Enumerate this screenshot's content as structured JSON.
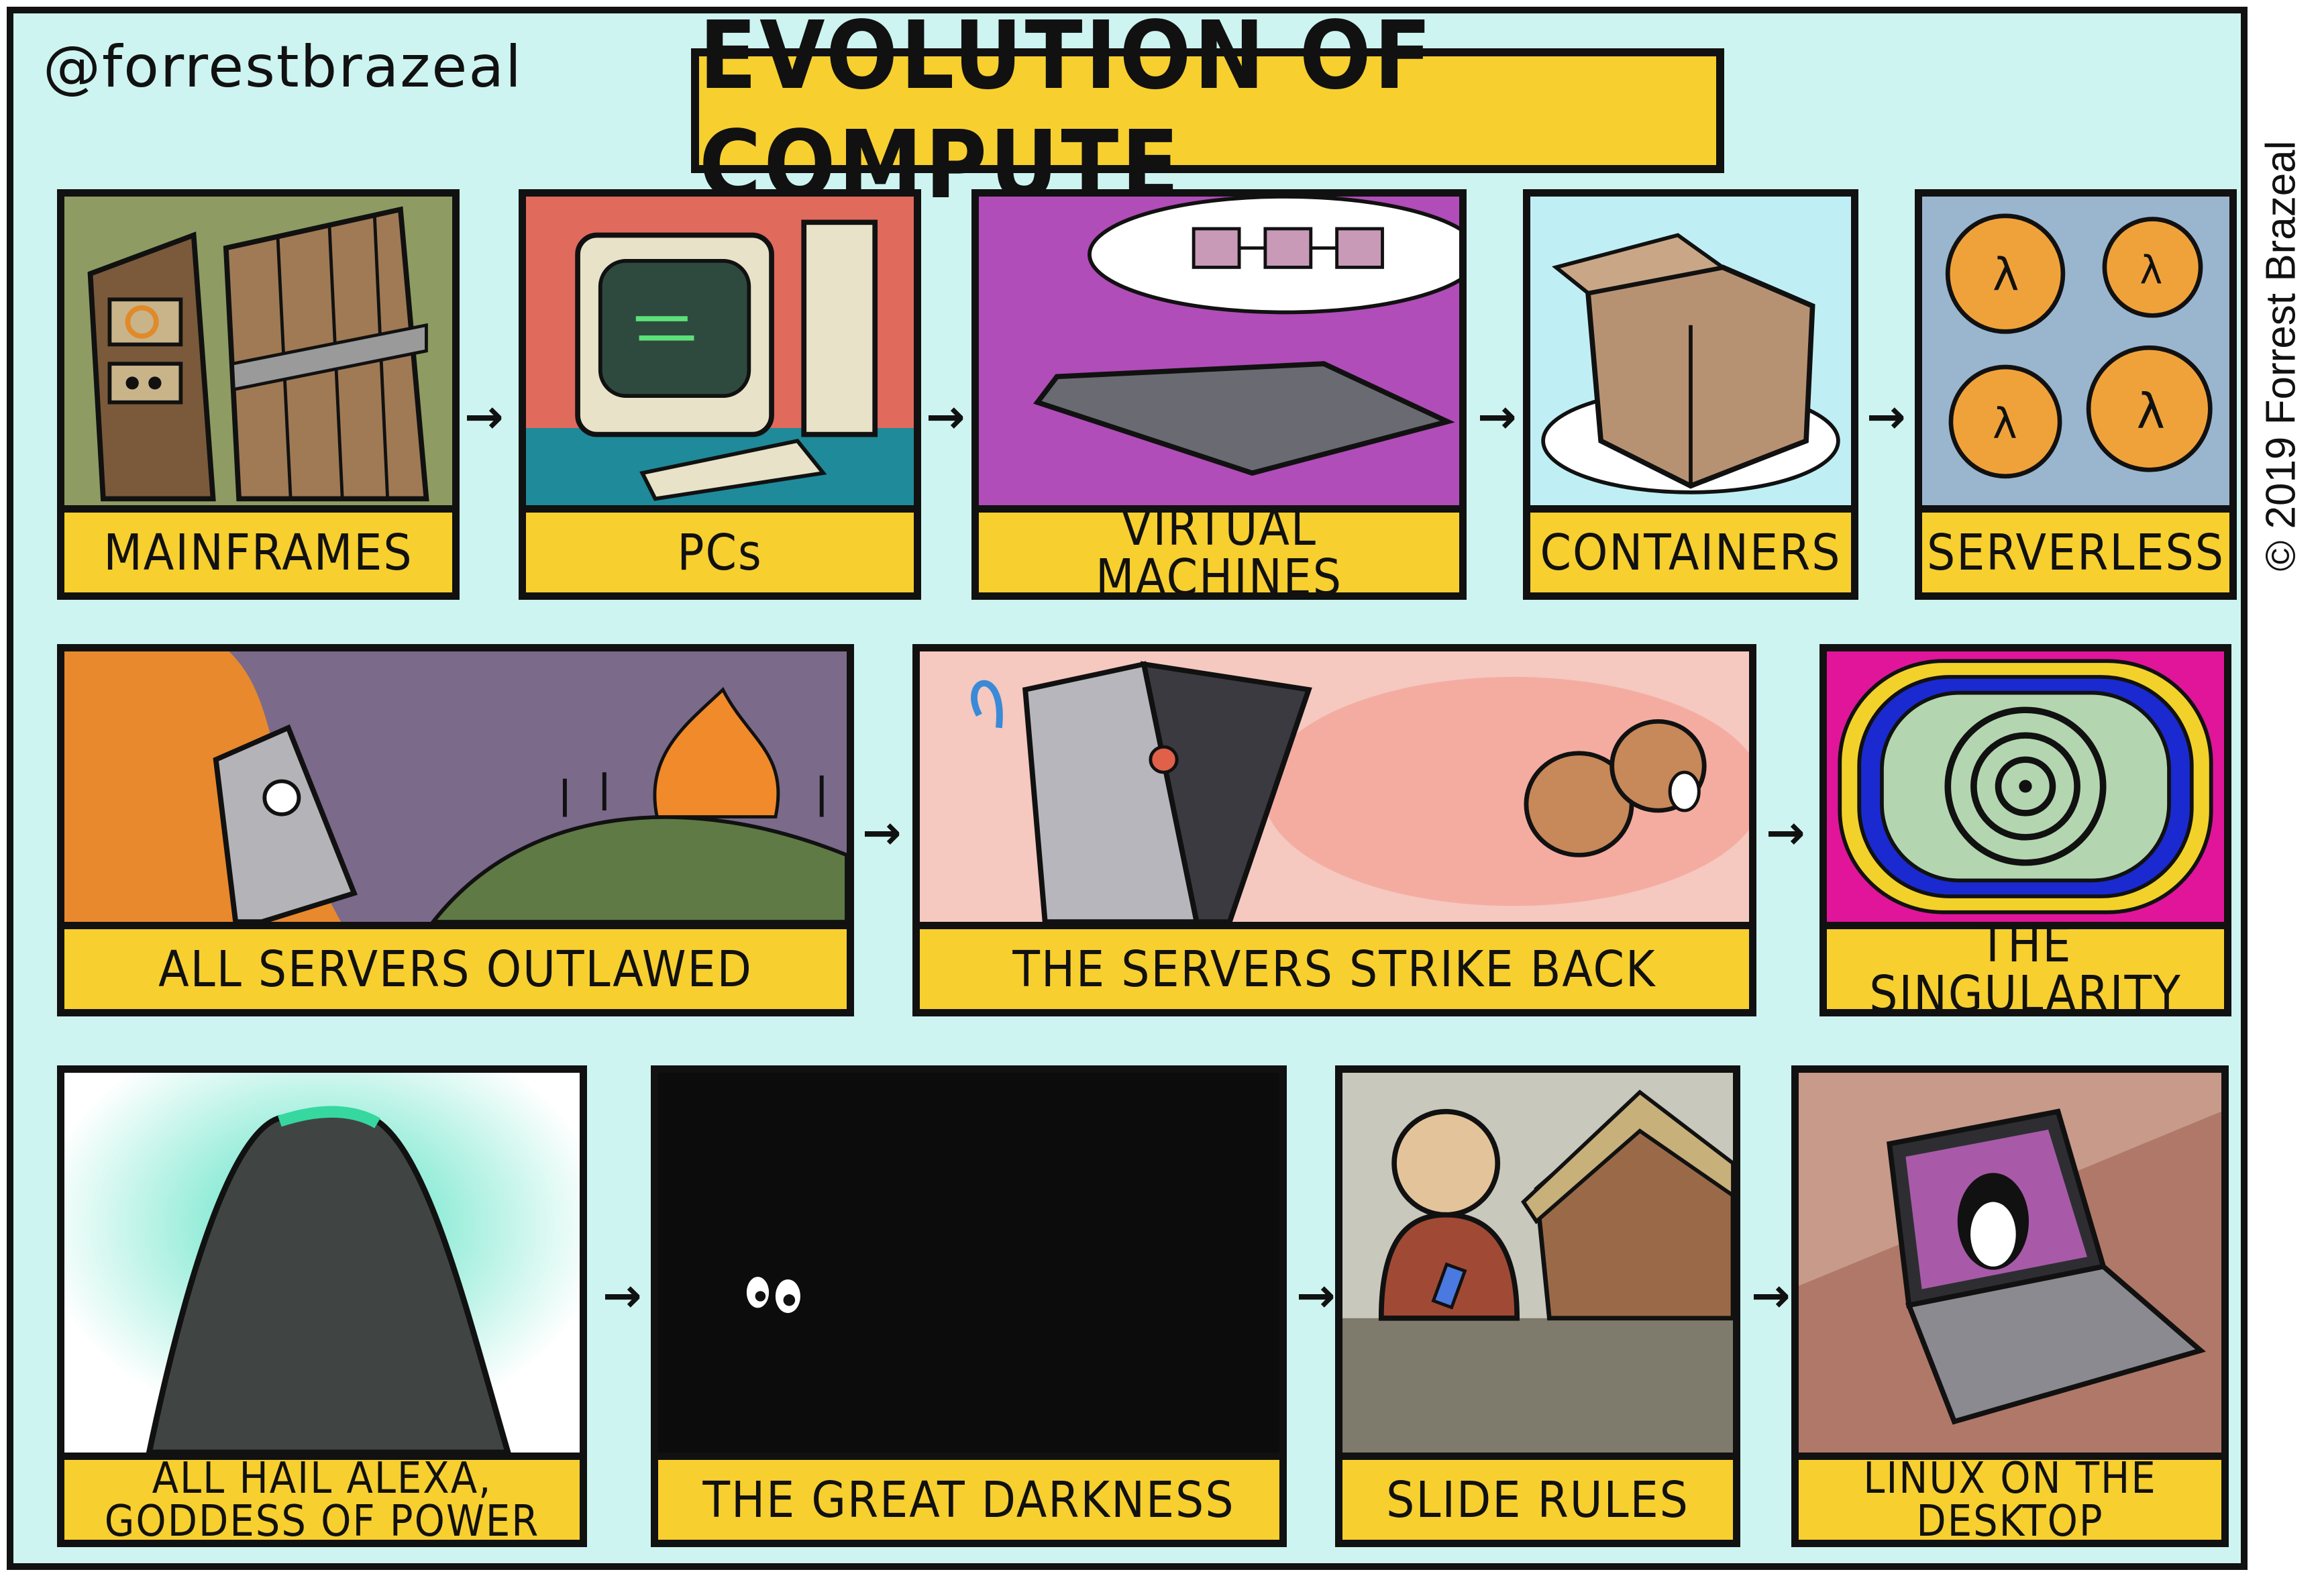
{
  "handle": "@forrestbrazeal",
  "title": "EVOLUTION OF COMPUTE",
  "copyright": "© 2019 Forrest Brazeal",
  "arrow_glyph": "→",
  "panels": [
    {
      "caption": "MAINFRAMES",
      "bg": "#8e9c63"
    },
    {
      "caption": "PCs",
      "bg": "#e06a5c"
    },
    {
      "caption": "VIRTUAL MACHINES",
      "bg": "#b04db8"
    },
    {
      "caption": "CONTAINERS",
      "bg": "#bfeff5"
    },
    {
      "caption": "SERVERLESS",
      "bg": "#9ab6cf"
    },
    {
      "caption": "ALL SERVERS OUTLAWED",
      "bg": "#7b6a8a"
    },
    {
      "caption": "THE SERVERS STRIKE BACK",
      "bg": "#f5c8c0"
    },
    {
      "caption": "THE SINGULARITY",
      "bg": "#e0159a"
    },
    {
      "caption": "ALL HAIL ALEXA, GODDESS OF POWER",
      "bg": "#ffffff"
    },
    {
      "caption": "THE GREAT DARKNESS",
      "bg": "#0c0c0c"
    },
    {
      "caption": "SLIDE RULES",
      "bg": "#c9c8bd"
    },
    {
      "caption": "LINUX ON THE DESKTOP",
      "bg": "#c89a8a"
    }
  ]
}
